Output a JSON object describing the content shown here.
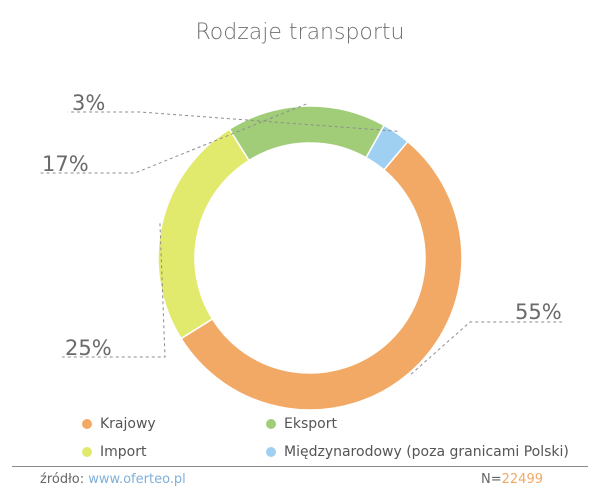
{
  "chart_data": {
    "type": "pie",
    "title": "Rodzaje transportu",
    "donut": true,
    "slices": [
      {
        "label": "Krajowy",
        "value": 55,
        "value_label": "55%",
        "color": "#f3a966"
      },
      {
        "label": "Import",
        "value": 25,
        "value_label": "25%",
        "color": "#e1ea6c"
      },
      {
        "label": "Eksport",
        "value": 17,
        "value_label": "17%",
        "color": "#a1cd79"
      },
      {
        "label": "Międzynarodowy (poza granicami Polski)",
        "value": 3,
        "value_label": "3%",
        "color": "#9fd0f1"
      }
    ],
    "legend_position": "bottom"
  },
  "footer": {
    "source_label": "źródło:",
    "source_url": "www.oferteo.pl",
    "n_label": "N=",
    "n_value": "22499"
  }
}
